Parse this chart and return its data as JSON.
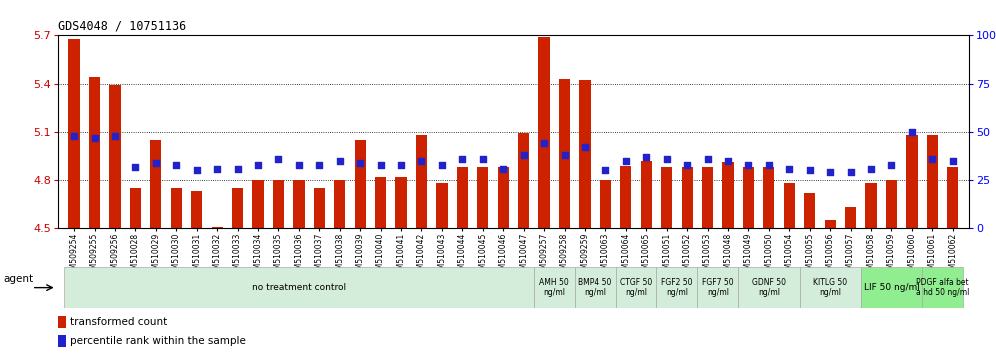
{
  "title": "GDS4048 / 10751136",
  "samples": [
    "GSM509254",
    "GSM509255",
    "GSM509256",
    "GSM510028",
    "GSM510029",
    "GSM510030",
    "GSM510031",
    "GSM510032",
    "GSM510033",
    "GSM510034",
    "GSM510035",
    "GSM510036",
    "GSM510037",
    "GSM510038",
    "GSM510039",
    "GSM510040",
    "GSM510041",
    "GSM510042",
    "GSM510043",
    "GSM510044",
    "GSM510045",
    "GSM510046",
    "GSM510047",
    "GSM509257",
    "GSM509258",
    "GSM509259",
    "GSM510063",
    "GSM510064",
    "GSM510065",
    "GSM510051",
    "GSM510052",
    "GSM510053",
    "GSM510048",
    "GSM510049",
    "GSM510050",
    "GSM510054",
    "GSM510055",
    "GSM510056",
    "GSM510057",
    "GSM510058",
    "GSM510059",
    "GSM510060",
    "GSM510061",
    "GSM510062"
  ],
  "bar_values": [
    5.68,
    5.44,
    5.39,
    4.75,
    5.05,
    4.75,
    4.73,
    4.51,
    4.75,
    4.8,
    4.8,
    4.8,
    4.75,
    4.8,
    5.05,
    4.82,
    4.82,
    5.08,
    4.78,
    4.88,
    4.88,
    4.88,
    5.09,
    5.69,
    5.43,
    5.42,
    4.8,
    4.89,
    4.92,
    4.88,
    4.88,
    4.88,
    4.91,
    4.88,
    4.88,
    4.78,
    4.72,
    4.55,
    4.63,
    4.78,
    4.8,
    5.08,
    5.08,
    4.88
  ],
  "percentile_values": [
    48,
    47,
    48,
    32,
    34,
    33,
    30,
    31,
    31,
    33,
    36,
    33,
    33,
    35,
    34,
    33,
    33,
    35,
    33,
    36,
    36,
    31,
    38,
    44,
    38,
    42,
    30,
    35,
    37,
    36,
    33,
    36,
    35,
    33,
    33,
    31,
    30,
    29,
    29,
    31,
    33,
    50,
    36,
    35
  ],
  "ylim_left": [
    4.5,
    5.7
  ],
  "ylim_right": [
    0,
    100
  ],
  "bar_color": "#cc2200",
  "dot_color": "#2222cc",
  "groups": [
    {
      "label": "no treatment control",
      "start": 0,
      "end": 23,
      "color": "#d4edda"
    },
    {
      "label": "AMH 50\nng/ml",
      "start": 23,
      "end": 25,
      "color": "#d4edda"
    },
    {
      "label": "BMP4 50\nng/ml",
      "start": 25,
      "end": 27,
      "color": "#d4edda"
    },
    {
      "label": "CTGF 50\nng/ml",
      "start": 27,
      "end": 29,
      "color": "#d4edda"
    },
    {
      "label": "FGF2 50\nng/ml",
      "start": 29,
      "end": 31,
      "color": "#d4edda"
    },
    {
      "label": "FGF7 50\nng/ml",
      "start": 31,
      "end": 33,
      "color": "#d4edda"
    },
    {
      "label": "GDNF 50\nng/ml",
      "start": 33,
      "end": 36,
      "color": "#d4edda"
    },
    {
      "label": "KITLG 50\nng/ml",
      "start": 36,
      "end": 39,
      "color": "#d4edda"
    },
    {
      "label": "LIF 50 ng/ml",
      "start": 39,
      "end": 42,
      "color": "#90ee90"
    },
    {
      "label": "PDGF alfa bet\na hd 50 ng/ml",
      "start": 42,
      "end": 44,
      "color": "#90ee90"
    }
  ],
  "yticks_left": [
    4.5,
    4.8,
    5.1,
    5.4,
    5.7
  ],
  "yticks_right": [
    0,
    25,
    50,
    75,
    100
  ]
}
